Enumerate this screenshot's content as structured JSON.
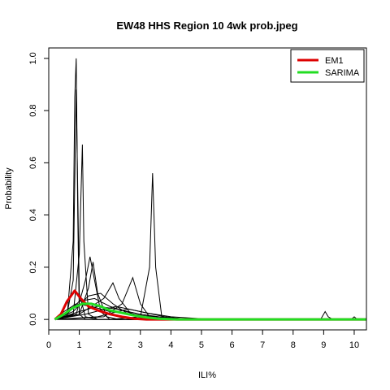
{
  "chart_data": {
    "type": "line",
    "title": "EW48 HHS Region 10 4wk prob.jpeg",
    "xlabel": "ILI%",
    "ylabel": "Probability",
    "xlim": [
      0,
      10.4
    ],
    "ylim": [
      -0.04,
      1.04
    ],
    "x_ticks": [
      0,
      1,
      2,
      3,
      4,
      5,
      6,
      7,
      8,
      9,
      10
    ],
    "y_ticks": [
      0.0,
      0.2,
      0.4,
      0.6,
      0.8,
      1.0
    ],
    "y_tick_labels": [
      "0.0",
      "0.2",
      "0.4",
      "0.6",
      "0.8",
      "1.0"
    ],
    "grid": false,
    "legend_position": "top-right",
    "legend": [
      {
        "label": "EM1",
        "color": "#dd0000"
      },
      {
        "label": "SARIMA",
        "color": "#22dd22"
      }
    ],
    "series": [
      {
        "name": "EM1",
        "color": "#dd0000",
        "line_width": 3,
        "points": [
          [
            0.2,
            0.0
          ],
          [
            0.4,
            0.02
          ],
          [
            0.6,
            0.07
          ],
          [
            0.85,
            0.11
          ],
          [
            1.05,
            0.08
          ],
          [
            1.3,
            0.05
          ],
          [
            1.6,
            0.035
          ],
          [
            2.0,
            0.02
          ],
          [
            2.4,
            0.01
          ],
          [
            2.8,
            0.003
          ],
          [
            3.2,
            0.0
          ],
          [
            3.6,
            0.0
          ],
          [
            10.4,
            0.0
          ]
        ]
      },
      {
        "name": "SARIMA",
        "color": "#22dd22",
        "line_width": 3,
        "points": [
          [
            0.2,
            0.0
          ],
          [
            0.5,
            0.02
          ],
          [
            0.8,
            0.045
          ],
          [
            1.1,
            0.06
          ],
          [
            1.4,
            0.06
          ],
          [
            1.7,
            0.05
          ],
          [
            2.0,
            0.035
          ],
          [
            2.4,
            0.025
          ],
          [
            2.8,
            0.015
          ],
          [
            3.2,
            0.008
          ],
          [
            3.6,
            0.003
          ],
          [
            4.2,
            0.0
          ],
          [
            10.4,
            0.0
          ]
        ]
      }
    ],
    "background_series": [
      [
        [
          0.2,
          0.0
        ],
        [
          0.6,
          0.01
        ],
        [
          0.8,
          0.3
        ],
        [
          0.85,
          0.85
        ],
        [
          0.9,
          1.0
        ],
        [
          0.95,
          0.4
        ],
        [
          1.0,
          0.02
        ],
        [
          1.2,
          0.0
        ],
        [
          10.4,
          0.0
        ]
      ],
      [
        [
          0.2,
          0.0
        ],
        [
          0.6,
          0.02
        ],
        [
          0.8,
          0.15
        ],
        [
          0.9,
          0.88
        ],
        [
          1.0,
          0.1
        ],
        [
          1.2,
          0.01
        ],
        [
          1.6,
          0.0
        ],
        [
          10.4,
          0.0
        ]
      ],
      [
        [
          0.2,
          0.0
        ],
        [
          0.8,
          0.02
        ],
        [
          1.0,
          0.25
        ],
        [
          1.1,
          0.67
        ],
        [
          1.15,
          0.3
        ],
        [
          1.3,
          0.02
        ],
        [
          1.6,
          0.0
        ],
        [
          10.4,
          0.0
        ]
      ],
      [
        [
          0.2,
          0.0
        ],
        [
          0.9,
          0.02
        ],
        [
          1.2,
          0.15
        ],
        [
          1.35,
          0.24
        ],
        [
          1.5,
          0.15
        ],
        [
          1.7,
          0.03
        ],
        [
          2.0,
          0.0
        ],
        [
          10.4,
          0.0
        ]
      ],
      [
        [
          0.2,
          0.0
        ],
        [
          1.0,
          0.02
        ],
        [
          1.3,
          0.12
        ],
        [
          1.45,
          0.22
        ],
        [
          1.6,
          0.1
        ],
        [
          1.9,
          0.01
        ],
        [
          2.3,
          0.0
        ],
        [
          10.4,
          0.0
        ]
      ],
      [
        [
          2.0,
          0.0
        ],
        [
          3.0,
          0.01
        ],
        [
          3.3,
          0.2
        ],
        [
          3.4,
          0.56
        ],
        [
          3.5,
          0.2
        ],
        [
          3.7,
          0.01
        ],
        [
          4.0,
          0.0
        ],
        [
          10.4,
          0.0
        ]
      ],
      [
        [
          0.2,
          0.0
        ],
        [
          1.8,
          0.01
        ],
        [
          2.4,
          0.06
        ],
        [
          2.75,
          0.16
        ],
        [
          3.0,
          0.06
        ],
        [
          3.3,
          0.01
        ],
        [
          3.8,
          0.0
        ],
        [
          10.4,
          0.0
        ]
      ],
      [
        [
          0.2,
          0.0
        ],
        [
          1.0,
          0.02
        ],
        [
          1.8,
          0.08
        ],
        [
          2.1,
          0.14
        ],
        [
          2.3,
          0.08
        ],
        [
          2.7,
          0.02
        ],
        [
          3.2,
          0.0
        ],
        [
          10.4,
          0.0
        ]
      ],
      [
        [
          0.2,
          0.0
        ],
        [
          0.8,
          0.03
        ],
        [
          1.3,
          0.09
        ],
        [
          1.7,
          0.1
        ],
        [
          2.1,
          0.06
        ],
        [
          2.6,
          0.02
        ],
        [
          3.2,
          0.0
        ],
        [
          10.4,
          0.0
        ]
      ],
      [
        [
          0.2,
          0.0
        ],
        [
          0.6,
          0.02
        ],
        [
          1.0,
          0.07
        ],
        [
          1.5,
          0.08
        ],
        [
          2.0,
          0.05
        ],
        [
          2.8,
          0.02
        ],
        [
          3.6,
          0.005
        ],
        [
          4.4,
          0.0
        ],
        [
          10.4,
          0.0
        ]
      ],
      [
        [
          0.2,
          0.0
        ],
        [
          1.2,
          0.02
        ],
        [
          2.2,
          0.05
        ],
        [
          3.0,
          0.03
        ],
        [
          3.8,
          0.01
        ],
        [
          4.6,
          0.0
        ],
        [
          10.4,
          0.0
        ]
      ],
      [
        [
          0.2,
          0.0
        ],
        [
          0.5,
          0.03
        ],
        [
          0.9,
          0.06
        ],
        [
          1.4,
          0.05
        ],
        [
          2.0,
          0.03
        ],
        [
          3.0,
          0.015
        ],
        [
          4.0,
          0.005
        ],
        [
          5.0,
          0.0
        ],
        [
          10.4,
          0.0
        ]
      ],
      [
        [
          0.2,
          0.0
        ],
        [
          1.6,
          0.01
        ],
        [
          2.6,
          0.04
        ],
        [
          3.2,
          0.025
        ],
        [
          4.0,
          0.01
        ],
        [
          5.0,
          0.003
        ],
        [
          6.2,
          0.0
        ],
        [
          10.4,
          0.0
        ]
      ],
      [
        [
          0.2,
          0.0
        ],
        [
          1.0,
          0.03
        ],
        [
          1.6,
          0.05
        ],
        [
          2.2,
          0.04
        ],
        [
          3.0,
          0.02
        ],
        [
          3.6,
          0.01
        ],
        [
          4.2,
          0.0
        ],
        [
          10.4,
          0.0
        ]
      ],
      [
        [
          0.2,
          0.0
        ],
        [
          8.9,
          0.0
        ],
        [
          9.05,
          0.03
        ],
        [
          9.15,
          0.01
        ],
        [
          9.3,
          0.0
        ],
        [
          10.4,
          0.0
        ]
      ],
      [
        [
          0.2,
          0.0
        ],
        [
          9.9,
          0.0
        ],
        [
          10.0,
          0.01
        ],
        [
          10.1,
          0.0
        ],
        [
          10.4,
          0.0
        ]
      ]
    ]
  }
}
